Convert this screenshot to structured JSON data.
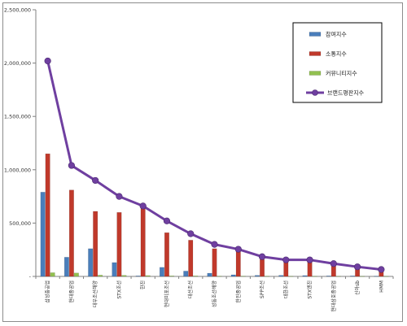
{
  "chart_data": {
    "type": "bar",
    "ylim": [
      0,
      2500000
    ],
    "yticks": [
      {
        "value": 0,
        "label": "-"
      },
      {
        "value": 500000,
        "label": "500,000"
      },
      {
        "value": 1000000,
        "label": "1,000,000"
      },
      {
        "value": 1500000,
        "label": "1,500,000"
      },
      {
        "value": 2000000,
        "label": "2,000,000"
      },
      {
        "value": 2500000,
        "label": "2,500,000"
      }
    ],
    "categories": [
      "삼성중공업",
      "현대중공업",
      "대우조선해양",
      "STX조선",
      "한진",
      "현대미포조선",
      "대선조선",
      "성동조선해양",
      "한진중공업",
      "SPP조선",
      "대한조선",
      "STX엔진",
      "현대삼호중공업",
      "신아sb",
      "HMM"
    ],
    "series": [
      {
        "name": "참여지수",
        "kind": "bar",
        "color": "#4a7ebb",
        "values": [
          790000,
          180000,
          260000,
          130000,
          5000,
          85000,
          50000,
          30000,
          15000,
          10000,
          10000,
          8000,
          5000,
          5000,
          3000
        ]
      },
      {
        "name": "소통지수",
        "kind": "bar",
        "color": "#c0392b",
        "values": [
          1150000,
          810000,
          610000,
          600000,
          650000,
          410000,
          340000,
          260000,
          240000,
          160000,
          140000,
          140000,
          100000,
          85000,
          60000
        ]
      },
      {
        "name": "커뮤니티지수",
        "kind": "bar",
        "color": "#92c050",
        "values": [
          35000,
          32000,
          12000,
          10000,
          8000,
          5000,
          5000,
          3000,
          3000,
          3000,
          2000,
          2000,
          2000,
          2000,
          2000
        ]
      },
      {
        "name": "브랜드평판지수",
        "kind": "line",
        "color": "#6f3fa0",
        "values": [
          2020000,
          1040000,
          900000,
          750000,
          660000,
          520000,
          400000,
          300000,
          255000,
          185000,
          155000,
          155000,
          120000,
          90000,
          65000
        ]
      }
    ],
    "legend_position": "top-right"
  }
}
